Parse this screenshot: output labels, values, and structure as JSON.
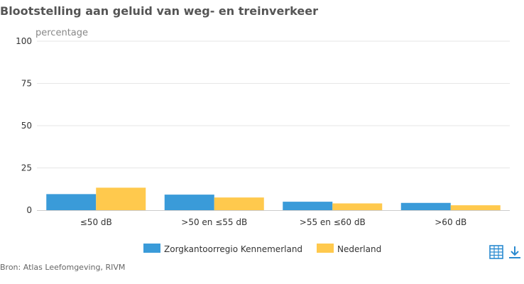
{
  "title": "Blootstelling aan geluid van weg- en treinverkeer",
  "source": "Bron: Atlas Leefomgeving, RIVM",
  "icons": {
    "table": "table-icon",
    "download": "download-icon"
  },
  "colors": {
    "series1": "#3a9bd9",
    "series2": "#ffc94d",
    "grid": "#e6e6e6",
    "axis": "#cccccc",
    "icon": "#2a8ad0"
  },
  "chart_data": {
    "type": "bar",
    "title": "Blootstelling aan geluid van weg- en treinverkeer",
    "ylabel": "percentage",
    "xlabel": "",
    "ylim": [
      0,
      100
    ],
    "yticks": [
      0,
      25,
      50,
      75,
      100
    ],
    "grid": true,
    "legend_position": "bottom",
    "categories": [
      "≤50 dB",
      ">50 en ≤55 dB",
      ">55 en ≤60 dB",
      ">60 dB"
    ],
    "series": [
      {
        "name": "Zorgkantoorregio Kennemerland",
        "values": [
          9.5,
          9.2,
          5.0,
          4.3
        ]
      },
      {
        "name": "Nederland",
        "values": [
          13.3,
          7.5,
          4.0,
          2.9
        ]
      }
    ]
  }
}
